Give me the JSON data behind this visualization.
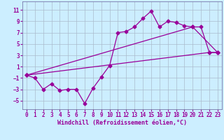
{
  "xlabel": "Windchill (Refroidissement éolien,°C)",
  "background_color": "#cceeff",
  "grid_color": "#aabbcc",
  "line_color": "#990099",
  "spine_color": "#7777aa",
  "xlim": [
    -0.5,
    23.5
  ],
  "ylim": [
    -6.5,
    12.5
  ],
  "xticks": [
    0,
    1,
    2,
    3,
    4,
    5,
    6,
    7,
    8,
    9,
    10,
    11,
    12,
    13,
    14,
    15,
    16,
    17,
    18,
    19,
    20,
    21,
    22,
    23
  ],
  "yticks": [
    -5,
    -3,
    -1,
    1,
    3,
    5,
    7,
    9,
    11
  ],
  "line1_x": [
    0,
    1,
    2,
    3,
    4,
    5,
    6,
    7,
    8,
    9,
    10,
    11,
    12,
    13,
    14,
    15,
    16,
    17,
    18,
    19,
    20,
    21,
    22,
    23
  ],
  "line1_y": [
    -0.5,
    -1.0,
    -3.0,
    -2.0,
    -3.2,
    -3.0,
    -3.0,
    -5.5,
    -2.8,
    -0.8,
    1.2,
    7.0,
    7.2,
    8.0,
    9.5,
    10.8,
    8.0,
    9.0,
    8.8,
    8.2,
    8.0,
    8.0,
    3.5,
    3.5
  ],
  "line2_x": [
    0,
    22,
    23
  ],
  "line2_y": [
    -0.5,
    3.5,
    3.5
  ],
  "line3_x": [
    0,
    20,
    23
  ],
  "line3_y": [
    -0.5,
    8.0,
    3.5
  ],
  "marker": "D",
  "markersize": 2.5,
  "linewidth": 0.9
}
